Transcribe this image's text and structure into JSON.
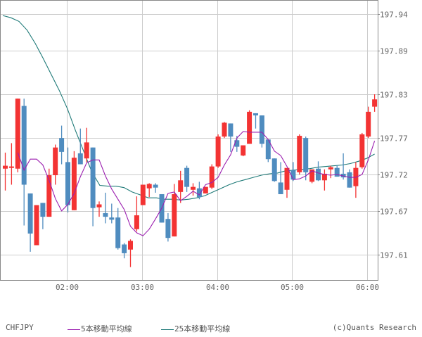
{
  "chart_data": {
    "type": "candlestick",
    "symbol": "CHFJPY",
    "interval": "5min",
    "title": "",
    "xlabel": "",
    "ylabel": "",
    "ylim": [
      197.58,
      197.96
    ],
    "y_ticks": [
      197.94,
      197.89,
      197.83,
      197.77,
      197.72,
      197.67,
      197.61
    ],
    "x_ticks": [
      "02:00",
      "03:00",
      "04:00",
      "05:00",
      "06:00"
    ],
    "grid": true,
    "legend_position": "bottom",
    "colors": {
      "up": "#f33333",
      "down": "#4f8cbf",
      "ma5": "#9b1fb0",
      "ma25": "#1f7a78",
      "grid": "#cccccc",
      "axis": "#888888"
    },
    "candles": [
      {
        "o": 197.728,
        "h": 197.75,
        "l": 197.698,
        "c": 197.732
      },
      {
        "o": 197.729,
        "h": 197.763,
        "l": 197.706,
        "c": 197.731
      },
      {
        "o": 197.728,
        "h": 197.824,
        "l": 197.723,
        "c": 197.824
      },
      {
        "o": 197.814,
        "h": 197.824,
        "l": 197.65,
        "c": 197.706
      },
      {
        "o": 197.694,
        "h": 197.694,
        "l": 197.614,
        "c": 197.639
      },
      {
        "o": 197.623,
        "h": 197.678,
        "l": 197.623,
        "c": 197.678
      },
      {
        "o": 197.681,
        "h": 197.681,
        "l": 197.645,
        "c": 197.662
      },
      {
        "o": 197.662,
        "h": 197.728,
        "l": 197.662,
        "c": 197.719
      },
      {
        "o": 197.719,
        "h": 197.761,
        "l": 197.706,
        "c": 197.757
      },
      {
        "o": 197.77,
        "h": 197.787,
        "l": 197.734,
        "c": 197.751
      },
      {
        "o": 197.737,
        "h": 197.757,
        "l": 197.668,
        "c": 197.678
      },
      {
        "o": 197.671,
        "h": 197.752,
        "l": 197.671,
        "c": 197.743
      },
      {
        "o": 197.749,
        "h": 197.783,
        "l": 197.734,
        "c": 197.734
      },
      {
        "o": 197.742,
        "h": 197.784,
        "l": 197.737,
        "c": 197.764
      },
      {
        "o": 197.757,
        "h": 197.757,
        "l": 197.649,
        "c": 197.674
      },
      {
        "o": 197.675,
        "h": 197.683,
        "l": 197.662,
        "c": 197.679
      },
      {
        "o": 197.667,
        "h": 197.695,
        "l": 197.653,
        "c": 197.662
      },
      {
        "o": 197.661,
        "h": 197.68,
        "l": 197.653,
        "c": 197.658
      },
      {
        "o": 197.661,
        "h": 197.674,
        "l": 197.617,
        "c": 197.619
      },
      {
        "o": 197.624,
        "h": 197.626,
        "l": 197.605,
        "c": 197.612
      },
      {
        "o": 197.617,
        "h": 197.631,
        "l": 197.593,
        "c": 197.629
      },
      {
        "o": 197.645,
        "h": 197.69,
        "l": 197.642,
        "c": 197.664
      },
      {
        "o": 197.678,
        "h": 197.701,
        "l": 197.678,
        "c": 197.706
      },
      {
        "o": 197.701,
        "h": 197.708,
        "l": 197.689,
        "c": 197.707
      },
      {
        "o": 197.706,
        "h": 197.708,
        "l": 197.695,
        "c": 197.702
      },
      {
        "o": 197.693,
        "h": 197.693,
        "l": 197.654,
        "c": 197.654
      },
      {
        "o": 197.659,
        "h": 197.667,
        "l": 197.628,
        "c": 197.633
      },
      {
        "o": 197.635,
        "h": 197.707,
        "l": 197.635,
        "c": 197.693
      },
      {
        "o": 197.696,
        "h": 197.725,
        "l": 197.681,
        "c": 197.712
      },
      {
        "o": 197.729,
        "h": 197.732,
        "l": 197.696,
        "c": 197.703
      },
      {
        "o": 197.699,
        "h": 197.708,
        "l": 197.691,
        "c": 197.703
      },
      {
        "o": 197.701,
        "h": 197.71,
        "l": 197.686,
        "c": 197.689
      },
      {
        "o": 197.694,
        "h": 197.702,
        "l": 197.694,
        "c": 197.703
      },
      {
        "o": 197.702,
        "h": 197.734,
        "l": 197.7,
        "c": 197.731
      },
      {
        "o": 197.731,
        "h": 197.775,
        "l": 197.729,
        "c": 197.772
      },
      {
        "o": 197.772,
        "h": 197.792,
        "l": 197.77,
        "c": 197.791
      },
      {
        "o": 197.79,
        "h": 197.79,
        "l": 197.751,
        "c": 197.772
      },
      {
        "o": 197.767,
        "h": 197.773,
        "l": 197.751,
        "c": 197.758
      },
      {
        "o": 197.746,
        "h": 197.76,
        "l": 197.745,
        "c": 197.76
      },
      {
        "o": 197.762,
        "h": 197.808,
        "l": 197.762,
        "c": 197.806
      },
      {
        "o": 197.804,
        "h": 197.804,
        "l": 197.783,
        "c": 197.801
      },
      {
        "o": 197.801,
        "h": 197.801,
        "l": 197.757,
        "c": 197.762
      },
      {
        "o": 197.768,
        "h": 197.768,
        "l": 197.737,
        "c": 197.741
      },
      {
        "o": 197.742,
        "h": 197.742,
        "l": 197.71,
        "c": 197.711
      },
      {
        "o": 197.709,
        "h": 197.737,
        "l": 197.693,
        "c": 197.693
      },
      {
        "o": 197.699,
        "h": 197.711,
        "l": 197.688,
        "c": 197.729
      },
      {
        "o": 197.726,
        "h": 197.737,
        "l": 197.711,
        "c": 197.713
      },
      {
        "o": 197.723,
        "h": 197.775,
        "l": 197.72,
        "c": 197.773
      },
      {
        "o": 197.77,
        "h": 197.772,
        "l": 197.712,
        "c": 197.723
      },
      {
        "o": 197.71,
        "h": 197.725,
        "l": 197.708,
        "c": 197.727
      },
      {
        "o": 197.728,
        "h": 197.738,
        "l": 197.711,
        "c": 197.712
      },
      {
        "o": 197.712,
        "h": 197.727,
        "l": 197.698,
        "c": 197.721
      },
      {
        "o": 197.727,
        "h": 197.732,
        "l": 197.715,
        "c": 197.73
      },
      {
        "o": 197.729,
        "h": 197.733,
        "l": 197.717,
        "c": 197.717
      },
      {
        "o": 197.721,
        "h": 197.749,
        "l": 197.713,
        "c": 197.716
      },
      {
        "o": 197.723,
        "h": 197.727,
        "l": 197.702,
        "c": 197.702
      },
      {
        "o": 197.704,
        "h": 197.737,
        "l": 197.688,
        "c": 197.729
      },
      {
        "o": 197.73,
        "h": 197.777,
        "l": 197.728,
        "c": 197.775
      },
      {
        "o": 197.772,
        "h": 197.813,
        "l": 197.77,
        "c": 197.806
      },
      {
        "o": 197.813,
        "h": 197.83,
        "l": 197.806,
        "c": 197.823
      }
    ],
    "series": [
      {
        "name": "5本移動平均線",
        "type": "line",
        "color": "#9b1fb0",
        "values": [
          197.75,
          197.726,
          197.741,
          197.741,
          197.733,
          197.712,
          197.687,
          197.67,
          197.679,
          197.694,
          197.717,
          197.736,
          197.74,
          197.74,
          197.718,
          197.7,
          197.686,
          197.672,
          197.649,
          197.64,
          197.636,
          197.645,
          197.659,
          197.674,
          197.694,
          197.696,
          197.684,
          197.69,
          197.697,
          197.692,
          197.706,
          197.709,
          197.716,
          197.733,
          197.747,
          197.77,
          197.779,
          197.778,
          197.778,
          197.778,
          197.768,
          197.752,
          197.746,
          197.731,
          197.713,
          197.714,
          197.718,
          197.725,
          197.722,
          197.72,
          197.719,
          197.72,
          197.718,
          197.716,
          197.716,
          197.72,
          197.74,
          197.766
        ]
      },
      {
        "name": "25本移動平均線",
        "type": "line",
        "color": "#1f7a78",
        "values": [
          197.938,
          197.935,
          197.93,
          197.918,
          197.9,
          197.879,
          197.857,
          197.835,
          197.81,
          197.78,
          197.752,
          197.724,
          197.705,
          197.704,
          197.704,
          197.702,
          197.696,
          197.692,
          197.688,
          197.688,
          197.686,
          197.686,
          197.685,
          197.686,
          197.688,
          197.691,
          197.696,
          197.701,
          197.706,
          197.71,
          197.713,
          197.716,
          197.719,
          197.721,
          197.722,
          197.725,
          197.726,
          197.727,
          197.728,
          197.73,
          197.731,
          197.732,
          197.733,
          197.735,
          197.738,
          197.742,
          197.748
        ]
      }
    ]
  },
  "axis": {
    "y_labels": [
      "197.94",
      "197.89",
      "197.83",
      "197.77",
      "197.72",
      "197.67",
      "197.61"
    ],
    "x_labels": [
      "02:00",
      "03:00",
      "04:00",
      "05:00",
      "06:00"
    ]
  },
  "legend": {
    "symbol": "CHFJPY",
    "ma5_label": "5本移動平均線",
    "ma25_label": "25本移動平均線",
    "copyright": "(c)Quants Research"
  }
}
